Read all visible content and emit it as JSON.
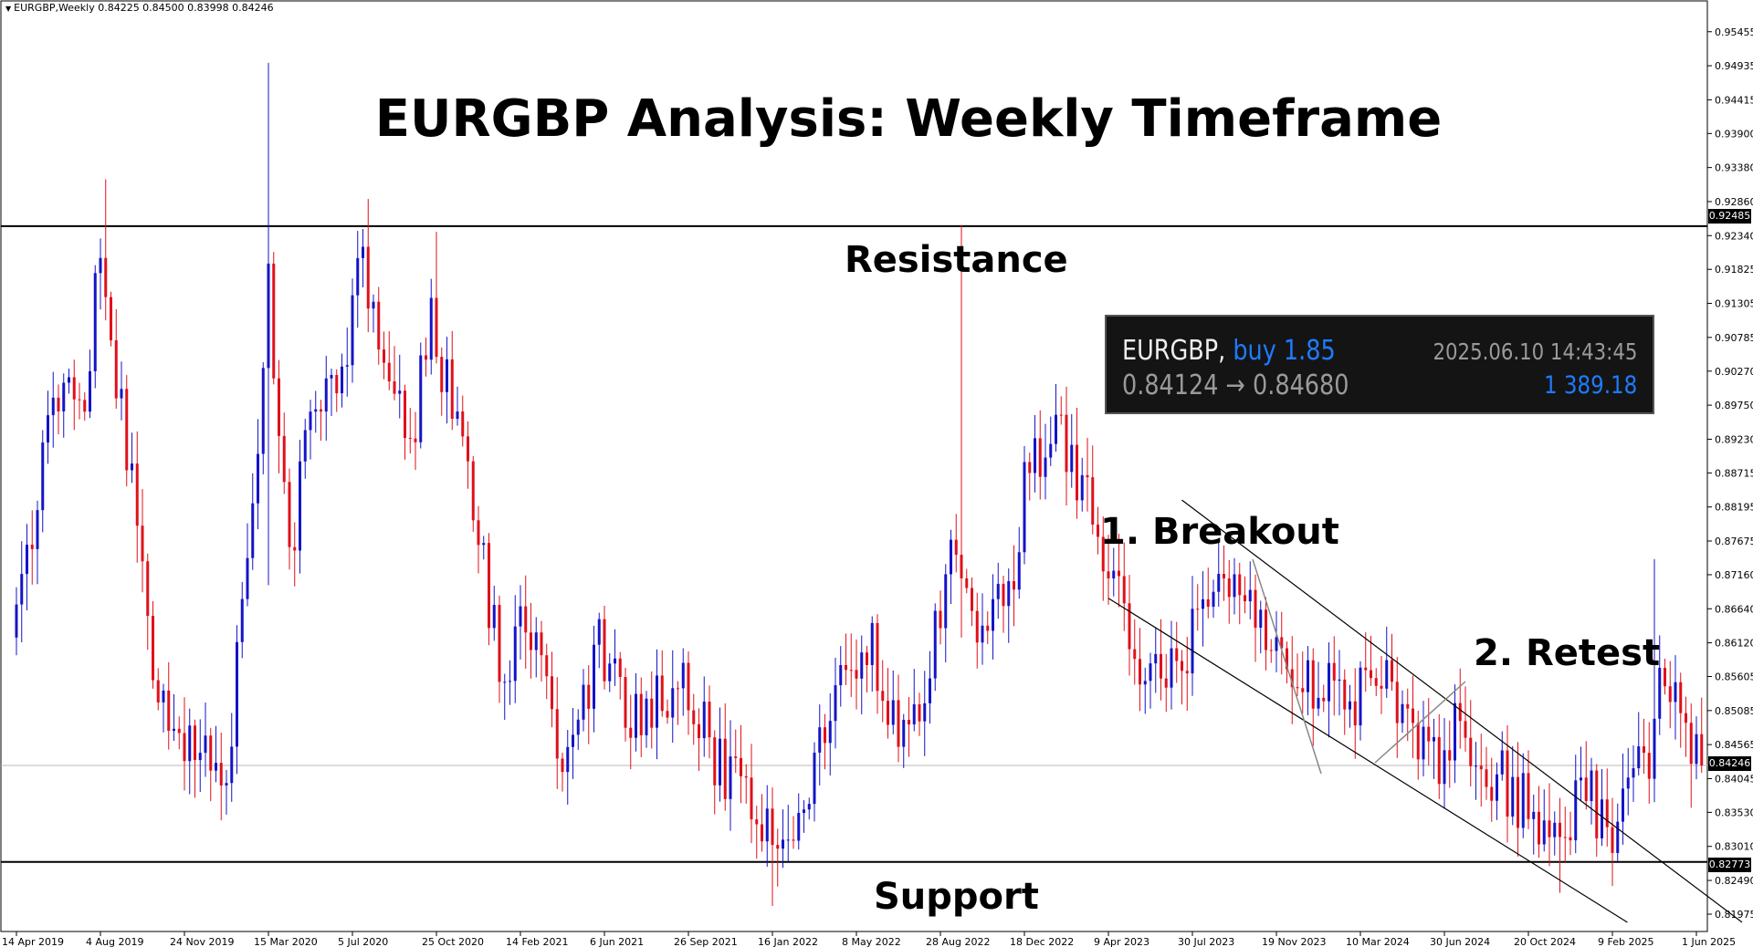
{
  "header": {
    "symbol_info": "EURGBP,Weekly  0.84225 0.84500 0.83998 0.84246",
    "title": "EURGBP Analysis: Weekly Timeframe"
  },
  "annotations": {
    "resistance": "Resistance",
    "support": "Support",
    "breakout": "1. Breakout",
    "retest": "2. Retest"
  },
  "trade_box": {
    "symbol": "EURGBP,",
    "side": "buy 1.85",
    "datetime": "2025.06.10 14:43:45",
    "prices": "0.84124 → 0.84680",
    "profit": "1 389.18"
  },
  "colors": {
    "bull": "#1414c8",
    "bear": "#e0101a",
    "level_line": "#000000",
    "trade_box_bg": "#141414",
    "accent_blue": "#1e7bff"
  },
  "chart_data": {
    "type": "candlestick",
    "symbol": "EURGBP",
    "timeframe": "Weekly",
    "ylim": [
      0.8171,
      0.958
    ],
    "y_ticks": [
      "0.95455",
      "0.94935",
      "0.94415",
      "0.93900",
      "0.93380",
      "0.92860",
      "0.92340",
      "0.91825",
      "0.91305",
      "0.90785",
      "0.90270",
      "0.89750",
      "0.89230",
      "0.88715",
      "0.88195",
      "0.87675",
      "0.87160",
      "0.86640",
      "0.86120",
      "0.85605",
      "0.85085",
      "0.84565",
      "0.84045",
      "0.83530",
      "0.83010",
      "0.82490",
      "0.81975"
    ],
    "x_ticks": [
      "14 Apr 2019",
      "4 Aug 2019",
      "24 Nov 2019",
      "15 Mar 2020",
      "5 Jul 2020",
      "25 Oct 2020",
      "14 Feb 2021",
      "6 Jun 2021",
      "26 Sep 2021",
      "16 Jan 2022",
      "8 May 2022",
      "28 Aug 2022",
      "18 Dec 2022",
      "9 Apr 2023",
      "30 Jul 2023",
      "19 Nov 2023",
      "10 Mar 2024",
      "30 Jun 2024",
      "20 Oct 2024",
      "9 Feb 2025",
      "1 Jun 2025"
    ],
    "levels": [
      {
        "name": "resistance",
        "value": 0.92485,
        "label": "0.92485"
      },
      {
        "name": "support",
        "value": 0.82773,
        "label": "0.82773"
      }
    ],
    "current_price": {
      "value": 0.84246,
      "label": "0.84246"
    },
    "channel": [
      {
        "name": "upper",
        "p1": [
          "2023-07-16",
          0.883
        ],
        "p2": [
          "2025-08-01",
          0.8185
        ]
      },
      {
        "name": "lower",
        "p1": [
          "2023-04-09",
          0.868
        ],
        "p2": [
          "2025-03-01",
          0.8185
        ]
      }
    ],
    "waypoints": [
      [
        "2019-04-14",
        0.862
      ],
      [
        "2019-06-01",
        0.893
      ],
      [
        "2019-07-21",
        0.901
      ],
      [
        "2019-08-11",
        0.919
      ],
      [
        "2019-09-15",
        0.89
      ],
      [
        "2019-10-20",
        0.86
      ],
      [
        "2019-11-24",
        0.845
      ],
      [
        "2019-12-22",
        0.845
      ],
      [
        "2020-01-26",
        0.843
      ],
      [
        "2020-02-23",
        0.87
      ],
      [
        "2020-03-22",
        0.915
      ],
      [
        "2020-04-19",
        0.875
      ],
      [
        "2020-05-24",
        0.898
      ],
      [
        "2020-06-28",
        0.9
      ],
      [
        "2020-07-26",
        0.92
      ],
      [
        "2020-08-30",
        0.898
      ],
      [
        "2020-10-04",
        0.895
      ],
      [
        "2020-10-25",
        0.911
      ],
      [
        "2020-12-13",
        0.885
      ],
      [
        "2021-01-31",
        0.855
      ],
      [
        "2021-02-28",
        0.865
      ],
      [
        "2021-04-18",
        0.845
      ],
      [
        "2021-06-06",
        0.86
      ],
      [
        "2021-07-18",
        0.85
      ],
      [
        "2021-08-29",
        0.853
      ],
      [
        "2021-09-26",
        0.858
      ],
      [
        "2021-11-14",
        0.842
      ],
      [
        "2021-12-26",
        0.839
      ],
      [
        "2022-01-16",
        0.833
      ],
      [
        "2022-02-27",
        0.835
      ],
      [
        "2022-03-27",
        0.845
      ],
      [
        "2022-04-24",
        0.855
      ],
      [
        "2022-06-05",
        0.86
      ],
      [
        "2022-07-17",
        0.846
      ],
      [
        "2022-08-28",
        0.862
      ],
      [
        "2022-09-18",
        0.875
      ],
      [
        "2022-10-23",
        0.865
      ],
      [
        "2022-12-04",
        0.867
      ],
      [
        "2022-12-25",
        0.885
      ],
      [
        "2023-02-05",
        0.895
      ],
      [
        "2023-03-05",
        0.887
      ],
      [
        "2023-04-09",
        0.876
      ],
      [
        "2023-05-14",
        0.86
      ],
      [
        "2023-06-11",
        0.857
      ],
      [
        "2023-07-16",
        0.858
      ],
      [
        "2023-08-13",
        0.865
      ],
      [
        "2023-09-24",
        0.87
      ],
      [
        "2023-10-15",
        0.87
      ],
      [
        "2023-11-19",
        0.861
      ],
      [
        "2023-12-24",
        0.855
      ],
      [
        "2024-02-04",
        0.857
      ],
      [
        "2024-03-10",
        0.853
      ],
      [
        "2024-04-14",
        0.857
      ],
      [
        "2024-05-26",
        0.848
      ],
      [
        "2024-06-30",
        0.844
      ],
      [
        "2024-07-28",
        0.85
      ],
      [
        "2024-09-01",
        0.843
      ],
      [
        "2024-10-06",
        0.838
      ],
      [
        "2024-11-10",
        0.834
      ],
      [
        "2024-12-08",
        0.828
      ],
      [
        "2025-01-12",
        0.84
      ],
      [
        "2025-02-09",
        0.83
      ],
      [
        "2025-03-09",
        0.838
      ],
      [
        "2025-04-06",
        0.845
      ],
      [
        "2025-04-20",
        0.862
      ],
      [
        "2025-05-18",
        0.848
      ],
      [
        "2025-06-08",
        0.8425
      ]
    ],
    "spikes": [
      {
        "date": "2019-08-11",
        "high": 0.932
      },
      {
        "date": "2020-03-15",
        "high": 0.9498,
        "low": 0.87
      },
      {
        "date": "2020-07-26",
        "high": 0.929
      },
      {
        "date": "2020-10-25",
        "high": 0.924
      },
      {
        "date": "2022-01-16",
        "low": 0.821
      },
      {
        "date": "2022-09-25",
        "high": 0.925,
        "low": 0.862
      },
      {
        "date": "2023-02-05",
        "high": 0.898
      },
      {
        "date": "2024-12-01",
        "low": 0.823
      },
      {
        "date": "2025-04-06",
        "high": 0.874
      },
      {
        "date": "2025-05-25",
        "low": 0.836
      }
    ]
  }
}
